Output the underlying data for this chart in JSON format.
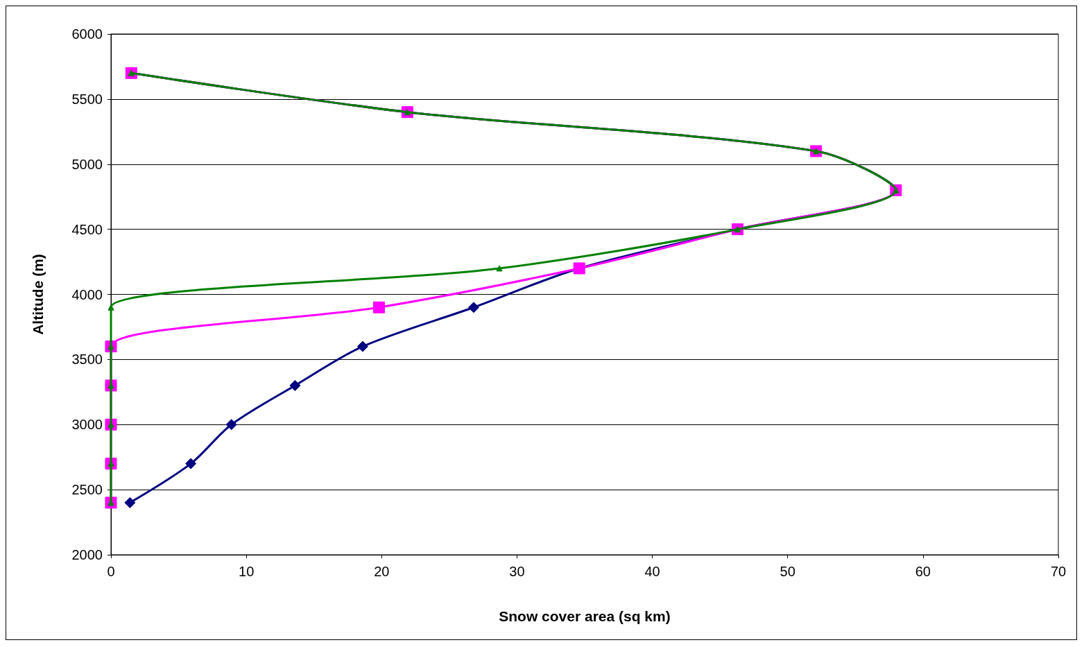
{
  "chart_data": {
    "type": "line",
    "xlabel": "Snow cover area (sq km)",
    "ylabel": "Altitude (m)",
    "xlim": [
      0,
      70
    ],
    "xticks": [
      0,
      10,
      20,
      30,
      40,
      50,
      60,
      70
    ],
    "ylim": [
      2000,
      6000
    ],
    "yticks": [
      2000,
      2500,
      3000,
      3500,
      4000,
      4500,
      5000,
      5500,
      6000
    ],
    "grid": "y",
    "series": [
      {
        "color": "#000080",
        "marker": "diamond",
        "x": [
          1.4,
          5.9,
          8.9,
          13.6,
          18.6,
          26.8,
          34.6,
          46.3,
          58.0,
          52.1,
          21.9,
          1.5
        ],
        "values": [
          2400,
          2700,
          3000,
          3300,
          3600,
          3900,
          4200,
          4500,
          4800,
          5100,
          5400,
          5700
        ]
      },
      {
        "color": "#ff00ff",
        "marker": "square",
        "x": [
          0,
          0,
          0,
          0,
          0,
          19.8,
          34.6,
          46.3,
          58.0,
          52.1,
          21.9,
          1.5
        ],
        "values": [
          2400,
          2700,
          3000,
          3300,
          3600,
          3900,
          4200,
          4500,
          4800,
          5100,
          5400,
          5700
        ]
      },
      {
        "color": "#008000",
        "marker": "triangle",
        "x": [
          0,
          0,
          0,
          0,
          0,
          0,
          28.7,
          46.3,
          58.0,
          52.1,
          21.9,
          1.5
        ],
        "values": [
          2400,
          2700,
          3000,
          3300,
          3600,
          3900,
          4200,
          4500,
          4800,
          5100,
          5400,
          5700
        ]
      }
    ]
  }
}
